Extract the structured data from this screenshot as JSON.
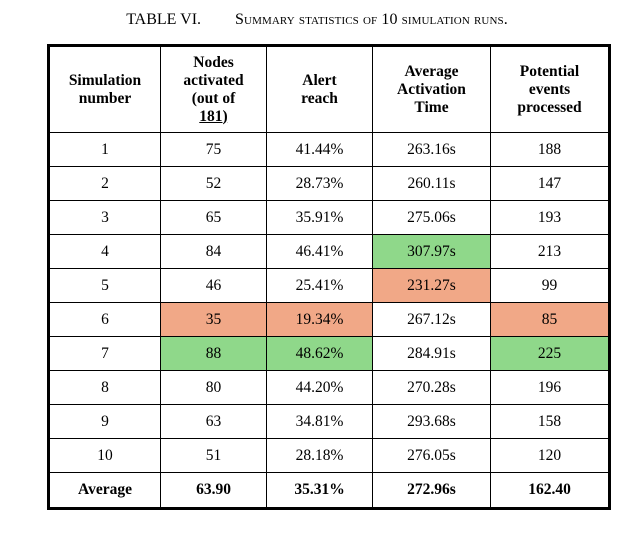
{
  "caption": {
    "label": "TABLE VI.",
    "title": "Summary statistics of 10 simulation runs."
  },
  "colors": {
    "highlight_max": "#8fd88a",
    "highlight_min": "#f1a887"
  },
  "table": {
    "headers": [
      [
        "Simulation",
        "number"
      ],
      [
        "Nodes",
        "activated",
        "(out of",
        "181)"
      ],
      [
        "Alert",
        "reach"
      ],
      [
        "Average",
        "Activation",
        "Time"
      ],
      [
        "Potential",
        "events",
        "processed"
      ]
    ],
    "rows": [
      {
        "cells": [
          "1",
          "75",
          "41.44%",
          "263.16s",
          "188"
        ],
        "highlight": [
          null,
          null,
          null,
          null,
          null
        ]
      },
      {
        "cells": [
          "2",
          "52",
          "28.73%",
          "260.11s",
          "147"
        ],
        "highlight": [
          null,
          null,
          null,
          null,
          null
        ]
      },
      {
        "cells": [
          "3",
          "65",
          "35.91%",
          "275.06s",
          "193"
        ],
        "highlight": [
          null,
          null,
          null,
          null,
          null
        ]
      },
      {
        "cells": [
          "4",
          "84",
          "46.41%",
          "307.97s",
          "213"
        ],
        "highlight": [
          null,
          null,
          null,
          "green",
          null
        ]
      },
      {
        "cells": [
          "5",
          "46",
          "25.41%",
          "231.27s",
          "99"
        ],
        "highlight": [
          null,
          null,
          null,
          "orange",
          null
        ]
      },
      {
        "cells": [
          "6",
          "35",
          "19.34%",
          "267.12s",
          "85"
        ],
        "highlight": [
          null,
          "orange",
          "orange",
          null,
          "orange"
        ]
      },
      {
        "cells": [
          "7",
          "88",
          "48.62%",
          "284.91s",
          "225"
        ],
        "highlight": [
          null,
          "green",
          "green",
          null,
          "green"
        ]
      },
      {
        "cells": [
          "8",
          "80",
          "44.20%",
          "270.28s",
          "196"
        ],
        "highlight": [
          null,
          null,
          null,
          null,
          null
        ]
      },
      {
        "cells": [
          "9",
          "63",
          "34.81%",
          "293.68s",
          "158"
        ],
        "highlight": [
          null,
          null,
          null,
          null,
          null
        ]
      },
      {
        "cells": [
          "10",
          "51",
          "28.18%",
          "276.05s",
          "120"
        ],
        "highlight": [
          null,
          null,
          null,
          null,
          null
        ]
      }
    ],
    "footer": [
      "Average",
      "63.90",
      "35.31%",
      "272.96s",
      "162.40"
    ]
  }
}
